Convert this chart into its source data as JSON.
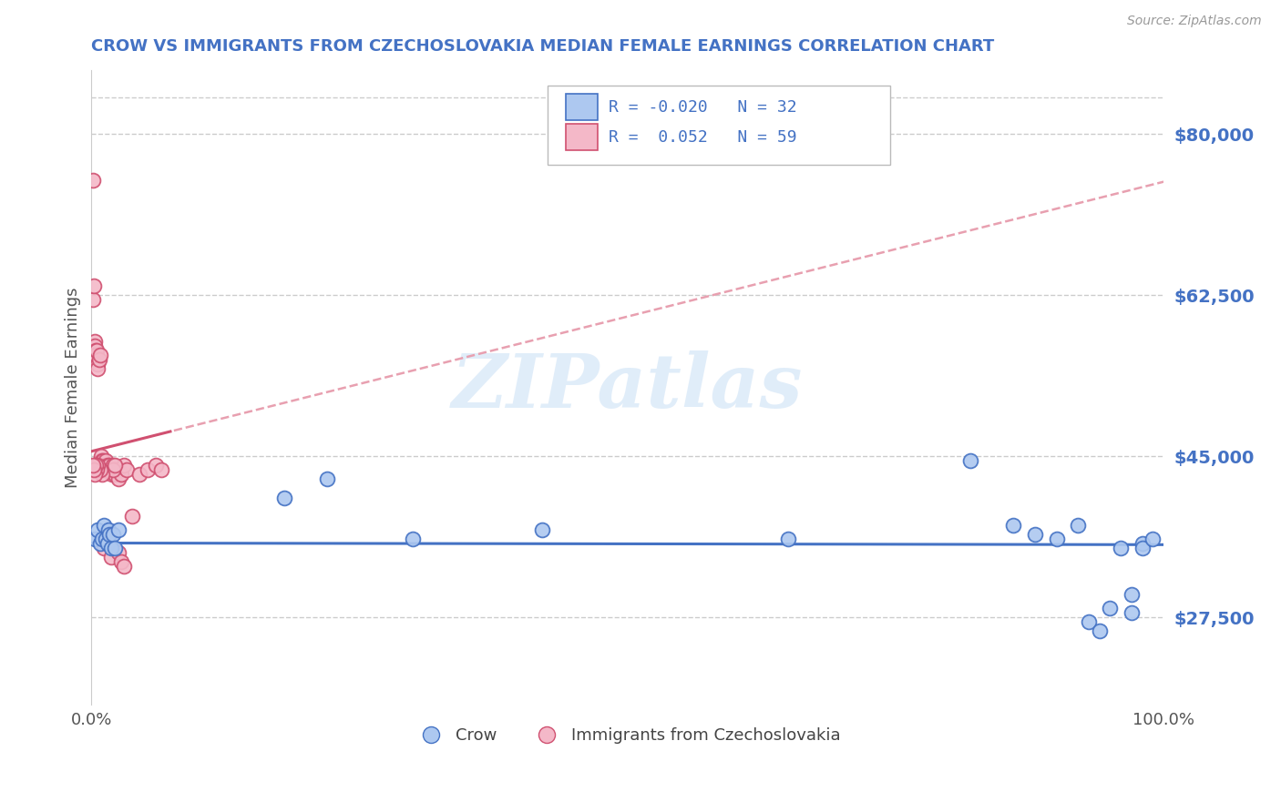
{
  "title": "CROW VS IMMIGRANTS FROM CZECHOSLOVAKIA MEDIAN FEMALE EARNINGS CORRELATION CHART",
  "source": "Source: ZipAtlas.com",
  "ylabel": "Median Female Earnings",
  "yticks": [
    27500,
    45000,
    62500,
    80000
  ],
  "ytick_labels": [
    "$27,500",
    "$45,000",
    "$62,500",
    "$80,000"
  ],
  "legend_crow_R": "-0.020",
  "legend_crow_N": "32",
  "legend_imm_R": "0.052",
  "legend_imm_N": "59",
  "crow_scatter_x": [
    0.003,
    0.006,
    0.008,
    0.01,
    0.012,
    0.013,
    0.015,
    0.016,
    0.017,
    0.018,
    0.02,
    0.022,
    0.025,
    0.18,
    0.22,
    0.3,
    0.42,
    0.65,
    0.82,
    0.86,
    0.88,
    0.9,
    0.92,
    0.93,
    0.94,
    0.95,
    0.96,
    0.97,
    0.97,
    0.98,
    0.98,
    0.99
  ],
  "crow_scatter_y": [
    36000,
    37000,
    35500,
    36000,
    37500,
    36000,
    35500,
    37000,
    36500,
    35000,
    36500,
    35000,
    37000,
    40500,
    42500,
    36000,
    37000,
    36000,
    44500,
    37500,
    36500,
    36000,
    37500,
    27000,
    26000,
    28500,
    35000,
    28000,
    30000,
    35500,
    35000,
    36000
  ],
  "imm_scatter_x": [
    0.001,
    0.001,
    0.002,
    0.002,
    0.003,
    0.003,
    0.004,
    0.004,
    0.005,
    0.005,
    0.006,
    0.006,
    0.007,
    0.008,
    0.008,
    0.009,
    0.009,
    0.01,
    0.01,
    0.011,
    0.012,
    0.012,
    0.013,
    0.014,
    0.015,
    0.016,
    0.017,
    0.018,
    0.019,
    0.02,
    0.021,
    0.022,
    0.025,
    0.025,
    0.028,
    0.03,
    0.033,
    0.038,
    0.045,
    0.052,
    0.06,
    0.065,
    0.012,
    0.015,
    0.018,
    0.02,
    0.022,
    0.025,
    0.028,
    0.03,
    0.015,
    0.01,
    0.008,
    0.006,
    0.005,
    0.004,
    0.003,
    0.002,
    0.001
  ],
  "imm_scatter_y": [
    75000,
    62000,
    63500,
    57000,
    57500,
    57000,
    56500,
    56000,
    55500,
    56500,
    55000,
    54500,
    55500,
    56000,
    44500,
    45000,
    44000,
    44500,
    43500,
    44500,
    43500,
    44000,
    44500,
    43500,
    44000,
    43500,
    44000,
    43500,
    43000,
    44000,
    43500,
    43000,
    43500,
    42500,
    43000,
    44000,
    43500,
    38500,
    43000,
    43500,
    44000,
    43500,
    35000,
    35500,
    34000,
    43500,
    44000,
    34500,
    33500,
    33000,
    36000,
    43000,
    43500,
    44000,
    43500,
    44000,
    43000,
    43500,
    44000
  ],
  "crow_fill_color": "#adc8f0",
  "crow_edge_color": "#4472c4",
  "imm_fill_color": "#f4b8c8",
  "imm_edge_color": "#d05070",
  "crow_line_color": "#4472c4",
  "imm_line_color": "#d05070",
  "imm_dash_color": "#e8a0b0",
  "grid_color": "#cccccc",
  "title_color": "#4472c4",
  "bg_color": "#ffffff",
  "xmin": 0.0,
  "xmax": 1.0,
  "ymin": 18000,
  "ymax": 87000
}
